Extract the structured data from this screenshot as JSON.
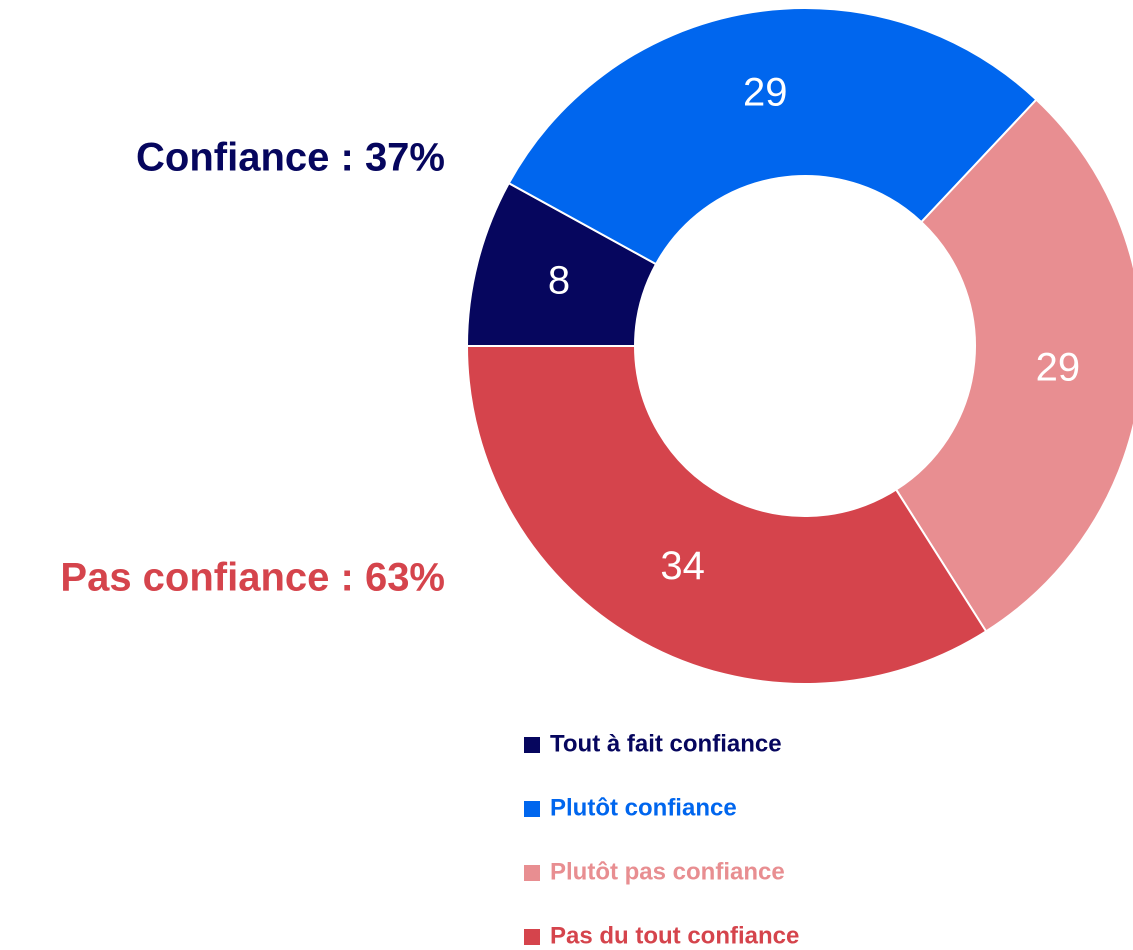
{
  "chart_data": {
    "type": "donut",
    "categories": [
      "Tout à fait confiance",
      "Plutôt confiance",
      "Plutôt pas confiance",
      "Pas du tout confiance"
    ],
    "values": [
      8,
      29,
      29,
      34
    ],
    "colors": [
      "#06065e",
      "#0066ee",
      "#e88e91",
      "#d5444c"
    ],
    "annotations": [
      {
        "text": "Confiance : 37%",
        "color": "#06065e"
      },
      {
        "text": "Pas confiance : 63%",
        "color": "#d5444c"
      }
    ],
    "legend": "bottom"
  }
}
